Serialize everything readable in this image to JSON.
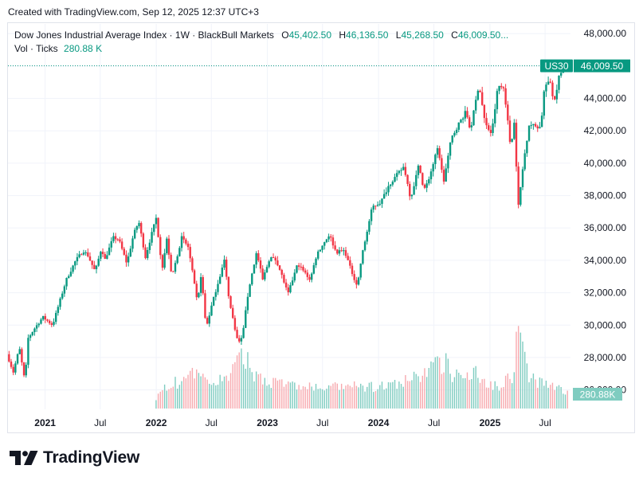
{
  "caption": "Created with TradingView.com, Sep 12, 2025 12:37 UTC+3",
  "brand": "TradingView",
  "legend": {
    "title": "Dow Jones Industrial Average Index · 1W · BlackBull Markets",
    "o_label": "O",
    "o_value": "45,402.50",
    "h_label": "H",
    "h_value": "46,136.50",
    "l_label": "L",
    "l_value": "45,268.50",
    "c_label": "C",
    "c_value": "46,009.50...",
    "vol_label": "Vol · Ticks",
    "vol_value": "280.88 K"
  },
  "colors": {
    "up": "#089981",
    "down": "#f23645",
    "up_vol": "#7fccc0",
    "down_vol": "#f7a9ae",
    "axis_text": "#131722",
    "grid": "#f0f3fa"
  },
  "chart_data": {
    "type": "candlestick",
    "title": "Dow Jones Industrial Average Index · 1W · BlackBull Markets",
    "symbol": "US30",
    "last_price": 46009.5,
    "last_price_label": "46,009.50",
    "last_volume_label": "280.88K",
    "ylim": [
      24800,
      48600
    ],
    "yticks": [
      26000,
      28000,
      30000,
      32000,
      34000,
      36000,
      38000,
      40000,
      42000,
      44000,
      46000,
      48000
    ],
    "ytick_labels": [
      "26,000.00",
      "28,000.00",
      "30,000.00",
      "32,000.00",
      "34,000.00",
      "36,000.00",
      "38,000.00",
      "40,000.00",
      "42,000.00",
      "44,000.00",
      "46,000.00",
      "48,000.00"
    ],
    "x_range": [
      "2020-09-01",
      "2025-09-12"
    ],
    "xticks": [
      {
        "date": "2021-01-01",
        "label": "2021",
        "bold": true
      },
      {
        "date": "2021-07-01",
        "label": "Jul",
        "bold": false
      },
      {
        "date": "2022-01-01",
        "label": "2022",
        "bold": true
      },
      {
        "date": "2022-07-01",
        "label": "Jul",
        "bold": false
      },
      {
        "date": "2023-01-01",
        "label": "2023",
        "bold": true
      },
      {
        "date": "2023-07-01",
        "label": "Jul",
        "bold": false
      },
      {
        "date": "2024-01-01",
        "label": "2024",
        "bold": true
      },
      {
        "date": "2024-07-01",
        "label": "Jul",
        "bold": false
      },
      {
        "date": "2025-01-01",
        "label": "2025",
        "bold": true
      },
      {
        "date": "2025-07-01",
        "label": "Jul",
        "bold": false
      }
    ],
    "price_path": [
      [
        "2020-09-01",
        28200
      ],
      [
        "2020-09-22",
        27100
      ],
      [
        "2020-10-12",
        28600
      ],
      [
        "2020-10-30",
        26500
      ],
      [
        "2020-11-10",
        29200
      ],
      [
        "2020-12-01",
        29800
      ],
      [
        "2020-12-28",
        30500
      ],
      [
        "2021-01-29",
        30000
      ],
      [
        "2021-02-22",
        31500
      ],
      [
        "2021-03-15",
        32800
      ],
      [
        "2021-04-15",
        34000
      ],
      [
        "2021-05-10",
        34600
      ],
      [
        "2021-05-25",
        34300
      ],
      [
        "2021-06-18",
        33300
      ],
      [
        "2021-07-09",
        34800
      ],
      [
        "2021-07-19",
        34000
      ],
      [
        "2021-08-16",
        35400
      ],
      [
        "2021-09-03",
        35300
      ],
      [
        "2021-09-30",
        33800
      ],
      [
        "2021-10-22",
        35600
      ],
      [
        "2021-11-08",
        36400
      ],
      [
        "2021-11-30",
        34200
      ],
      [
        "2021-12-20",
        35600
      ],
      [
        "2022-01-04",
        36600
      ],
      [
        "2022-01-24",
        33500
      ],
      [
        "2022-02-09",
        35400
      ],
      [
        "2022-02-24",
        32900
      ],
      [
        "2022-03-29",
        35400
      ],
      [
        "2022-04-20",
        34800
      ],
      [
        "2022-05-20",
        31300
      ],
      [
        "2022-06-01",
        33200
      ],
      [
        "2022-06-17",
        29800
      ],
      [
        "2022-07-08",
        31400
      ],
      [
        "2022-08-16",
        34000
      ],
      [
        "2022-09-02",
        31400
      ],
      [
        "2022-09-30",
        28900
      ],
      [
        "2022-10-13",
        29200
      ],
      [
        "2022-11-04",
        32200
      ],
      [
        "2022-11-30",
        34500
      ],
      [
        "2022-12-20",
        32800
      ],
      [
        "2023-01-13",
        34200
      ],
      [
        "2023-02-03",
        34000
      ],
      [
        "2023-02-24",
        32900
      ],
      [
        "2023-03-13",
        31900
      ],
      [
        "2023-04-14",
        33800
      ],
      [
        "2023-05-25",
        32800
      ],
      [
        "2023-06-16",
        34400
      ],
      [
        "2023-07-27",
        35600
      ],
      [
        "2023-08-18",
        34500
      ],
      [
        "2023-09-15",
        34600
      ],
      [
        "2023-10-06",
        33400
      ],
      [
        "2023-10-27",
        32400
      ],
      [
        "2023-11-10",
        34200
      ],
      [
        "2023-12-15",
        37300
      ],
      [
        "2024-01-12",
        37600
      ],
      [
        "2024-02-09",
        38700
      ],
      [
        "2024-03-28",
        39800
      ],
      [
        "2024-04-19",
        37800
      ],
      [
        "2024-05-17",
        40000
      ],
      [
        "2024-05-31",
        38300
      ],
      [
        "2024-06-14",
        38800
      ],
      [
        "2024-07-18",
        41000
      ],
      [
        "2024-08-05",
        38800
      ],
      [
        "2024-08-30",
        41500
      ],
      [
        "2024-09-20",
        42300
      ],
      [
        "2024-10-18",
        43200
      ],
      [
        "2024-11-01",
        42000
      ],
      [
        "2024-11-29",
        44900
      ],
      [
        "2024-12-20",
        42400
      ],
      [
        "2025-01-10",
        41800
      ],
      [
        "2025-01-31",
        44800
      ],
      [
        "2025-02-20",
        44600
      ],
      [
        "2025-03-13",
        41000
      ],
      [
        "2025-03-26",
        42600
      ],
      [
        "2025-04-07",
        37200
      ],
      [
        "2025-04-25",
        40100
      ],
      [
        "2025-05-13",
        42400
      ],
      [
        "2025-06-20",
        42200
      ],
      [
        "2025-07-03",
        44800
      ],
      [
        "2025-07-25",
        45000
      ],
      [
        "2025-08-01",
        43600
      ],
      [
        "2025-08-22",
        45600
      ],
      [
        "2025-09-12",
        46009.5
      ]
    ],
    "volume_path": [
      [
        "2020-09-01",
        0
      ],
      [
        "2021-12-25",
        0
      ],
      [
        "2022-01-05",
        3100
      ],
      [
        "2022-02-01",
        3800
      ],
      [
        "2022-03-01",
        4200
      ],
      [
        "2022-05-01",
        5600
      ],
      [
        "2022-07-01",
        4400
      ],
      [
        "2022-09-01",
        5500
      ],
      [
        "2022-10-15",
        9200
      ],
      [
        "2022-11-15",
        5800
      ],
      [
        "2023-01-15",
        4600
      ],
      [
        "2023-04-01",
        3800
      ],
      [
        "2023-07-01",
        3400
      ],
      [
        "2023-10-01",
        3700
      ],
      [
        "2023-12-15",
        3600
      ],
      [
        "2024-03-01",
        4000
      ],
      [
        "2024-04-15",
        4800
      ],
      [
        "2024-08-05",
        8000
      ],
      [
        "2024-09-01",
        5500
      ],
      [
        "2024-11-01",
        6500
      ],
      [
        "2024-12-20",
        4300
      ],
      [
        "2025-02-01",
        4000
      ],
      [
        "2025-03-15",
        5600
      ],
      [
        "2025-04-07",
        14500
      ],
      [
        "2025-05-01",
        6200
      ],
      [
        "2025-06-01",
        4500
      ],
      [
        "2025-07-15",
        3900
      ],
      [
        "2025-09-12",
        2800
      ]
    ],
    "volume_max": 15000
  }
}
